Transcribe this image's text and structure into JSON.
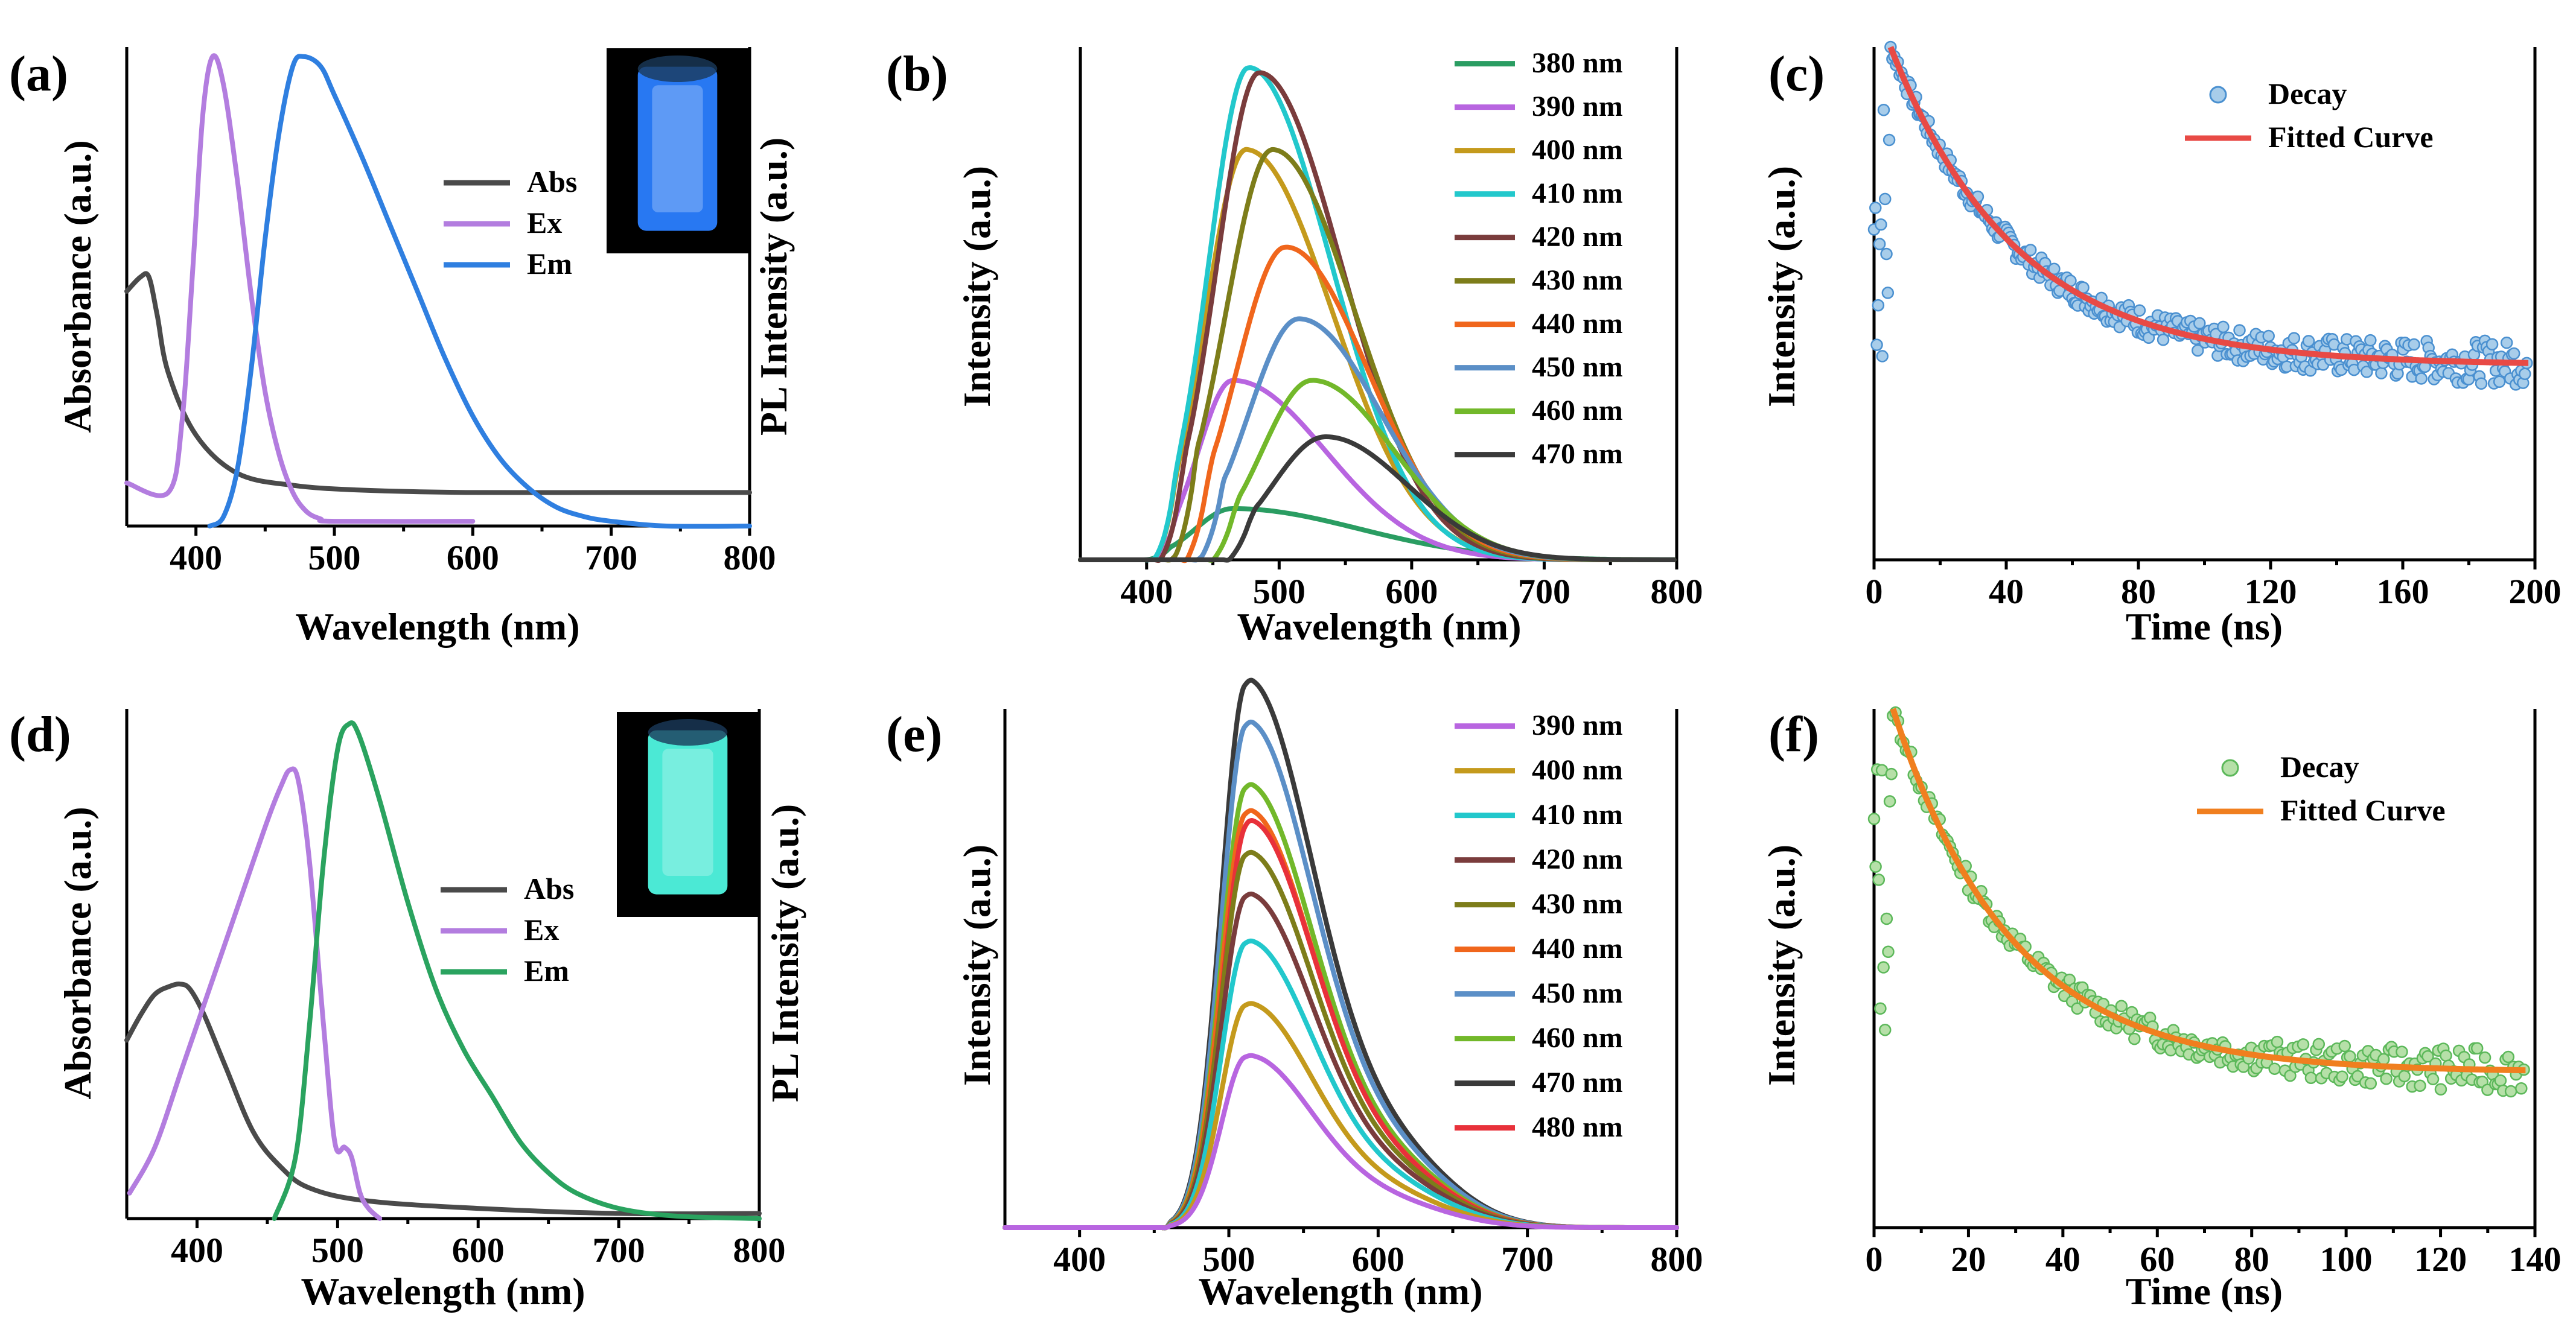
{
  "colors": {
    "abs": "#4a4a4a",
    "ex": "#b37ddf",
    "em_blue": "#2f7fe0",
    "em_green": "#2aa35f",
    "decay_blue_fill": "#a8cdea",
    "decay_blue_stroke": "#4a90d0",
    "fit_red": "#e84a45",
    "decay_green_fill": "#b6e0a8",
    "decay_green_stroke": "#5cb85a",
    "fit_orange": "#f07f1f",
    "cuvette_blue": "#2a7eff",
    "cuvette_cyan": "#4ff6e0"
  },
  "chart_data": [
    {
      "id": "a",
      "panel_label": "(a)",
      "type": "line",
      "title": "",
      "xlabel": "Wavelength (nm)",
      "ylabel_left": "Absorbance (a.u.)",
      "ylabel_right": "PL Intensity (a.u.)",
      "xlim": [
        350,
        800
      ],
      "ylim": [
        0,
        1
      ],
      "xticks": [
        400,
        500,
        600,
        700,
        800
      ],
      "legend_position": "center-right",
      "inset": "blue-emitting cuvette photo",
      "series": [
        {
          "name": "Abs",
          "color": "abs",
          "x": [
            350,
            360,
            366,
            372,
            380,
            400,
            430,
            470,
            520,
            600,
            700,
            800
          ],
          "y": [
            0.49,
            0.52,
            0.52,
            0.44,
            0.32,
            0.19,
            0.11,
            0.085,
            0.075,
            0.07,
            0.07,
            0.07
          ]
        },
        {
          "name": "Ex",
          "color": "ex",
          "x": [
            350,
            380,
            390,
            398,
            405,
            412,
            420,
            430,
            440,
            450,
            460,
            470,
            480,
            490,
            500,
            600
          ],
          "y": [
            0.09,
            0.07,
            0.22,
            0.55,
            0.86,
            0.98,
            0.92,
            0.72,
            0.48,
            0.28,
            0.15,
            0.07,
            0.03,
            0.015,
            0.01,
            0.01
          ]
        },
        {
          "name": "Em",
          "color": "em_blue",
          "x": [
            410,
            420,
            430,
            440,
            450,
            460,
            470,
            478,
            490,
            500,
            520,
            540,
            560,
            580,
            600,
            620,
            640,
            660,
            680,
            700,
            740,
            800
          ],
          "y": [
            0.0,
            0.02,
            0.12,
            0.33,
            0.6,
            0.82,
            0.96,
            0.98,
            0.96,
            0.9,
            0.77,
            0.63,
            0.49,
            0.35,
            0.23,
            0.14,
            0.08,
            0.04,
            0.02,
            0.01,
            0.0,
            0.0
          ]
        }
      ]
    },
    {
      "id": "b",
      "panel_label": "(b)",
      "type": "line",
      "title": "",
      "xlabel": "Wavelength (nm)",
      "ylabel": "Intensity (a.u.)",
      "xlim": [
        350,
        800
      ],
      "ylim": [
        0,
        1
      ],
      "xticks": [
        400,
        500,
        600,
        700,
        800
      ],
      "legend_position": "top-right",
      "series": [
        {
          "name": "380 nm",
          "color": "#2a9d62",
          "peak": 0.1,
          "peak_x": 465,
          "sl": 28,
          "sr": 95,
          "onset": 400
        },
        {
          "name": "390 nm",
          "color": "#b865e0",
          "peak": 0.35,
          "peak_x": 465,
          "sl": 26,
          "sr": 70,
          "onset": 405
        },
        {
          "name": "400 nm",
          "color": "#c49a1c",
          "peak": 0.8,
          "peak_x": 475,
          "sl": 30,
          "sr": 65,
          "onset": 405
        },
        {
          "name": "410 nm",
          "color": "#22c8cc",
          "peak": 0.96,
          "peak_x": 477,
          "sl": 30,
          "sr": 62,
          "onset": 405
        },
        {
          "name": "420 nm",
          "color": "#7a3c3c",
          "peak": 0.95,
          "peak_x": 485,
          "sl": 32,
          "sr": 62,
          "onset": 410
        },
        {
          "name": "430 nm",
          "color": "#7d7d1a",
          "peak": 0.8,
          "peak_x": 495,
          "sl": 35,
          "sr": 62,
          "onset": 420
        },
        {
          "name": "440 nm",
          "color": "#f0661c",
          "peak": 0.61,
          "peak_x": 505,
          "sl": 37,
          "sr": 62,
          "onset": 430
        },
        {
          "name": "450 nm",
          "color": "#5b8fc7",
          "peak": 0.47,
          "peak_x": 515,
          "sl": 38,
          "sr": 62,
          "onset": 440
        },
        {
          "name": "460 nm",
          "color": "#72b82a",
          "peak": 0.35,
          "peak_x": 525,
          "sl": 38,
          "sr": 62,
          "onset": 450
        },
        {
          "name": "470 nm",
          "color": "#3a3a3a",
          "peak": 0.24,
          "peak_x": 535,
          "sl": 40,
          "sr": 62,
          "onset": 462
        }
      ]
    },
    {
      "id": "c",
      "panel_label": "(c)",
      "type": "scatter",
      "title": "",
      "xlabel": "Time (ns)",
      "ylabel": "Intensity (a.u.)",
      "xlim": [
        0,
        200
      ],
      "ylim": [
        0,
        1
      ],
      "xticks": [
        0,
        40,
        80,
        120,
        160,
        200
      ],
      "legend_position": "top-right",
      "decay": {
        "name": "Decay",
        "t0": 5,
        "tau": 38,
        "base": 0.38,
        "amp": 0.62,
        "noise": 0.028
      },
      "fit": {
        "name": "Fitted Curve",
        "color": "fit_red"
      }
    },
    {
      "id": "d",
      "panel_label": "(d)",
      "type": "line",
      "title": "",
      "xlabel": "Wavelength (nm)",
      "ylabel_left": "Absorbance (a.u.)",
      "ylabel_right": "PL Intensity (a.u.)",
      "xlim": [
        350,
        800
      ],
      "ylim": [
        0,
        1
      ],
      "xticks": [
        400,
        500,
        600,
        700,
        800
      ],
      "legend_position": "center-right",
      "inset": "cyan-emitting cuvette photo",
      "series": [
        {
          "name": "Abs",
          "color": "abs",
          "x": [
            350,
            360,
            370,
            380,
            388,
            395,
            405,
            420,
            440,
            460,
            480,
            520,
            600,
            700,
            800
          ],
          "y": [
            0.35,
            0.4,
            0.44,
            0.455,
            0.46,
            0.45,
            0.4,
            0.3,
            0.17,
            0.1,
            0.06,
            0.035,
            0.02,
            0.01,
            0.01
          ]
        },
        {
          "name": "Ex",
          "color": "ex",
          "x": [
            352,
            370,
            390,
            410,
            430,
            450,
            460,
            466,
            472,
            480,
            490,
            498,
            505,
            510,
            516,
            522,
            530
          ],
          "y": [
            0.05,
            0.14,
            0.3,
            0.46,
            0.62,
            0.78,
            0.85,
            0.88,
            0.86,
            0.7,
            0.38,
            0.15,
            0.14,
            0.12,
            0.05,
            0.02,
            0.0
          ]
        },
        {
          "name": "Em",
          "color": "em_green",
          "x": [
            455,
            470,
            480,
            490,
            500,
            508,
            515,
            530,
            550,
            570,
            590,
            610,
            630,
            650,
            670,
            700,
            740,
            800
          ],
          "y": [
            0.0,
            0.12,
            0.38,
            0.7,
            0.92,
            0.97,
            0.95,
            0.82,
            0.62,
            0.45,
            0.33,
            0.24,
            0.15,
            0.09,
            0.05,
            0.02,
            0.005,
            0.0
          ]
        }
      ]
    },
    {
      "id": "e",
      "panel_label": "(e)",
      "type": "line",
      "title": "",
      "xlabel": "Wavelength (nm)",
      "ylabel": "Intensity (a.u.)",
      "xlim": [
        350,
        800
      ],
      "ylim": [
        0,
        1
      ],
      "xticks": [
        400,
        500,
        600,
        700,
        800
      ],
      "legend_position": "top-right",
      "series": [
        {
          "name": "390 nm",
          "color": "#b865e0",
          "peak": 0.33,
          "peak_x": 512
        },
        {
          "name": "400 nm",
          "color": "#c49a1c",
          "peak": 0.43,
          "peak_x": 512
        },
        {
          "name": "410 nm",
          "color": "#22c8cc",
          "peak": 0.55,
          "peak_x": 512
        },
        {
          "name": "420 nm",
          "color": "#7a3c3c",
          "peak": 0.64,
          "peak_x": 512
        },
        {
          "name": "430 nm",
          "color": "#7d7d1a",
          "peak": 0.72,
          "peak_x": 512
        },
        {
          "name": "440 nm",
          "color": "#f0661c",
          "peak": 0.8,
          "peak_x": 512
        },
        {
          "name": "450 nm",
          "color": "#5b8fc7",
          "peak": 0.97,
          "peak_x": 512
        },
        {
          "name": "460 nm",
          "color": "#72b82a",
          "peak": 0.85,
          "peak_x": 512
        },
        {
          "name": "470 nm",
          "color": "#3a3a3a",
          "peak": 1.05,
          "peak_x": 512
        },
        {
          "name": "480 nm",
          "color": "#e8313a",
          "peak": 0.78,
          "peak_x": 513
        }
      ]
    },
    {
      "id": "f",
      "panel_label": "(f)",
      "type": "scatter",
      "title": "",
      "xlabel": "Time (ns)",
      "ylabel": "Intensity (a.u.)",
      "xlim": [
        0,
        140
      ],
      "ylim": [
        0,
        1
      ],
      "xticks": [
        0,
        20,
        40,
        60,
        80,
        100,
        120,
        140
      ],
      "legend_position": "top-right",
      "decay": {
        "name": "Decay",
        "t0": 4,
        "tau": 25,
        "base": 0.3,
        "amp": 0.7,
        "noise": 0.028
      },
      "fit": {
        "name": "Fitted Curve",
        "color": "fit_orange"
      }
    }
  ]
}
